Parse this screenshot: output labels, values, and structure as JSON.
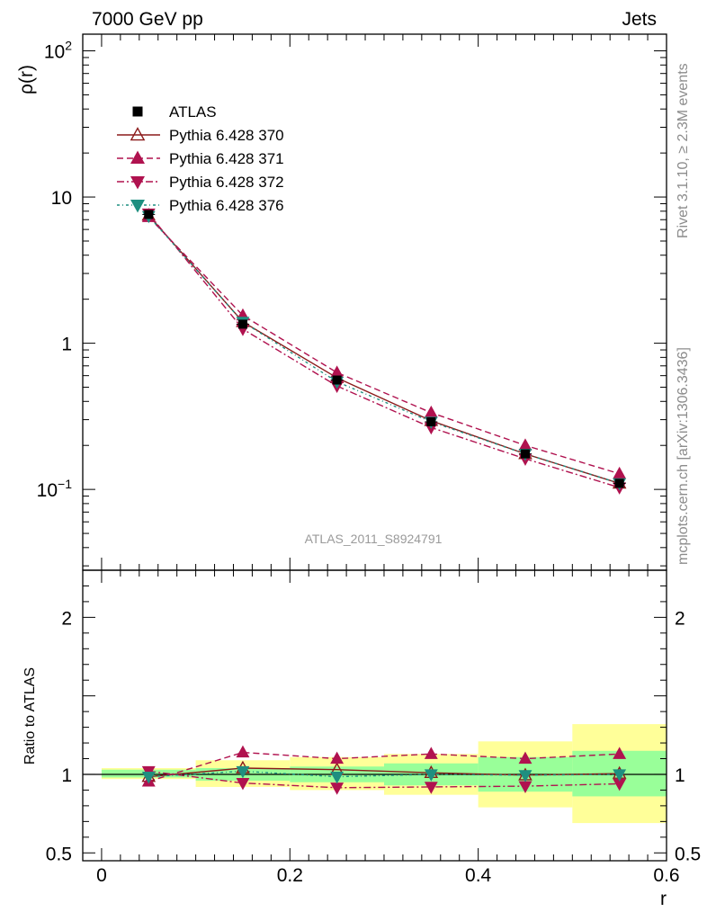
{
  "header": {
    "left": "7000 GeV pp",
    "right": "Jets"
  },
  "side_text": {
    "rivet": "Rivet 3.1.10, ≥ 2.3M events",
    "mcplots": "mcplots.cern.ch [arXiv:1306.3436]"
  },
  "watermark": "ATLAS_2011_S8924791",
  "chart_data": [
    {
      "panel": "main",
      "type": "line",
      "ylabel": "ρ(r)",
      "yscale": "log",
      "ylim": [
        0.028,
        130
      ],
      "xlim": [
        -0.02,
        0.6
      ],
      "ytick_labels": [
        {
          "value": 0.1,
          "base": "10",
          "exp": "−1"
        },
        {
          "value": 1,
          "base": "1",
          "exp": ""
        },
        {
          "value": 10,
          "base": "10",
          "exp": ""
        },
        {
          "value": 100,
          "base": "10",
          "exp": "2"
        }
      ],
      "x": [
        0.05,
        0.15,
        0.25,
        0.35,
        0.45,
        0.55
      ],
      "series": [
        {
          "name": "ATLAS",
          "color": "#000000",
          "marker": "square",
          "line": "none",
          "values": [
            7.6,
            1.35,
            0.56,
            0.29,
            0.175,
            0.11
          ]
        },
        {
          "name": "Pythia 6.428 370",
          "color": "#8b1a1a",
          "marker": "triangle-up-open",
          "line": "solid",
          "values": [
            7.5,
            1.4,
            0.58,
            0.295,
            0.175,
            0.11
          ]
        },
        {
          "name": "Pythia 6.428 371",
          "color": "#b0124f",
          "marker": "triangle-up",
          "line": "dashed",
          "values": [
            7.3,
            1.55,
            0.63,
            0.335,
            0.2,
            0.128
          ]
        },
        {
          "name": "Pythia 6.428 372",
          "color": "#b0124f",
          "marker": "triangle-down",
          "line": "dashdot",
          "values": [
            7.7,
            1.25,
            0.51,
            0.265,
            0.162,
            0.103
          ]
        },
        {
          "name": "Pythia 6.428 376",
          "color": "#1f8f80",
          "marker": "triangle-down",
          "line": "dotdash",
          "values": [
            7.4,
            1.4,
            0.545,
            0.29,
            0.175,
            0.11
          ]
        }
      ]
    },
    {
      "panel": "ratio",
      "type": "line",
      "ylabel": "Ratio to ATLAS",
      "xlabel": "r",
      "ylim": [
        0.45,
        2.3
      ],
      "xlim": [
        -0.02,
        0.6
      ],
      "ytick_labels": [
        {
          "value": 0.5,
          "label": "0.5"
        },
        {
          "value": 1,
          "label": "1"
        },
        {
          "value": 2,
          "label": "2"
        }
      ],
      "xtick_labels": [
        {
          "value": 0,
          "label": "0"
        },
        {
          "value": 0.2,
          "label": "0.2"
        },
        {
          "value": 0.4,
          "label": "0.4"
        },
        {
          "value": 0.6,
          "label": "0.6"
        }
      ],
      "x": [
        0.05,
        0.15,
        0.25,
        0.35,
        0.45,
        0.55
      ],
      "bands": [
        {
          "xmin": 0.0,
          "xmax": 0.1,
          "yellow": [
            0.97,
            1.04
          ],
          "green": [
            0.98,
            1.03
          ]
        },
        {
          "xmin": 0.1,
          "xmax": 0.2,
          "yellow": [
            0.92,
            1.09
          ],
          "green": [
            0.96,
            1.04
          ]
        },
        {
          "xmin": 0.2,
          "xmax": 0.3,
          "yellow": [
            0.9,
            1.11
          ],
          "green": [
            0.95,
            1.05
          ]
        },
        {
          "xmin": 0.3,
          "xmax": 0.4,
          "yellow": [
            0.87,
            1.13
          ],
          "green": [
            0.93,
            1.07
          ]
        },
        {
          "xmin": 0.4,
          "xmax": 0.5,
          "yellow": [
            0.79,
            1.21
          ],
          "green": [
            0.89,
            1.11
          ]
        },
        {
          "xmin": 0.5,
          "xmax": 0.6,
          "yellow": [
            0.69,
            1.32
          ],
          "green": [
            0.86,
            1.15
          ]
        }
      ],
      "series": [
        {
          "name": "Pythia 6.428 370",
          "color": "#8b1a1a",
          "marker": "triangle-up-open",
          "line": "solid",
          "values": [
            0.985,
            1.04,
            1.03,
            1.01,
            0.995,
            1.005
          ]
        },
        {
          "name": "Pythia 6.428 371",
          "color": "#b0124f",
          "marker": "triangle-up",
          "line": "dashed",
          "values": [
            0.955,
            1.14,
            1.1,
            1.13,
            1.1,
            1.13
          ]
        },
        {
          "name": "Pythia 6.428 372",
          "color": "#b0124f",
          "marker": "triangle-down",
          "line": "dashdot",
          "values": [
            1.02,
            0.945,
            0.915,
            0.92,
            0.925,
            0.94
          ]
        },
        {
          "name": "Pythia 6.428 376",
          "color": "#1f8f80",
          "marker": "triangle-down",
          "line": "dotdash",
          "values": [
            0.985,
            1.02,
            0.985,
            1.0,
            0.995,
            1.0
          ]
        }
      ]
    }
  ]
}
